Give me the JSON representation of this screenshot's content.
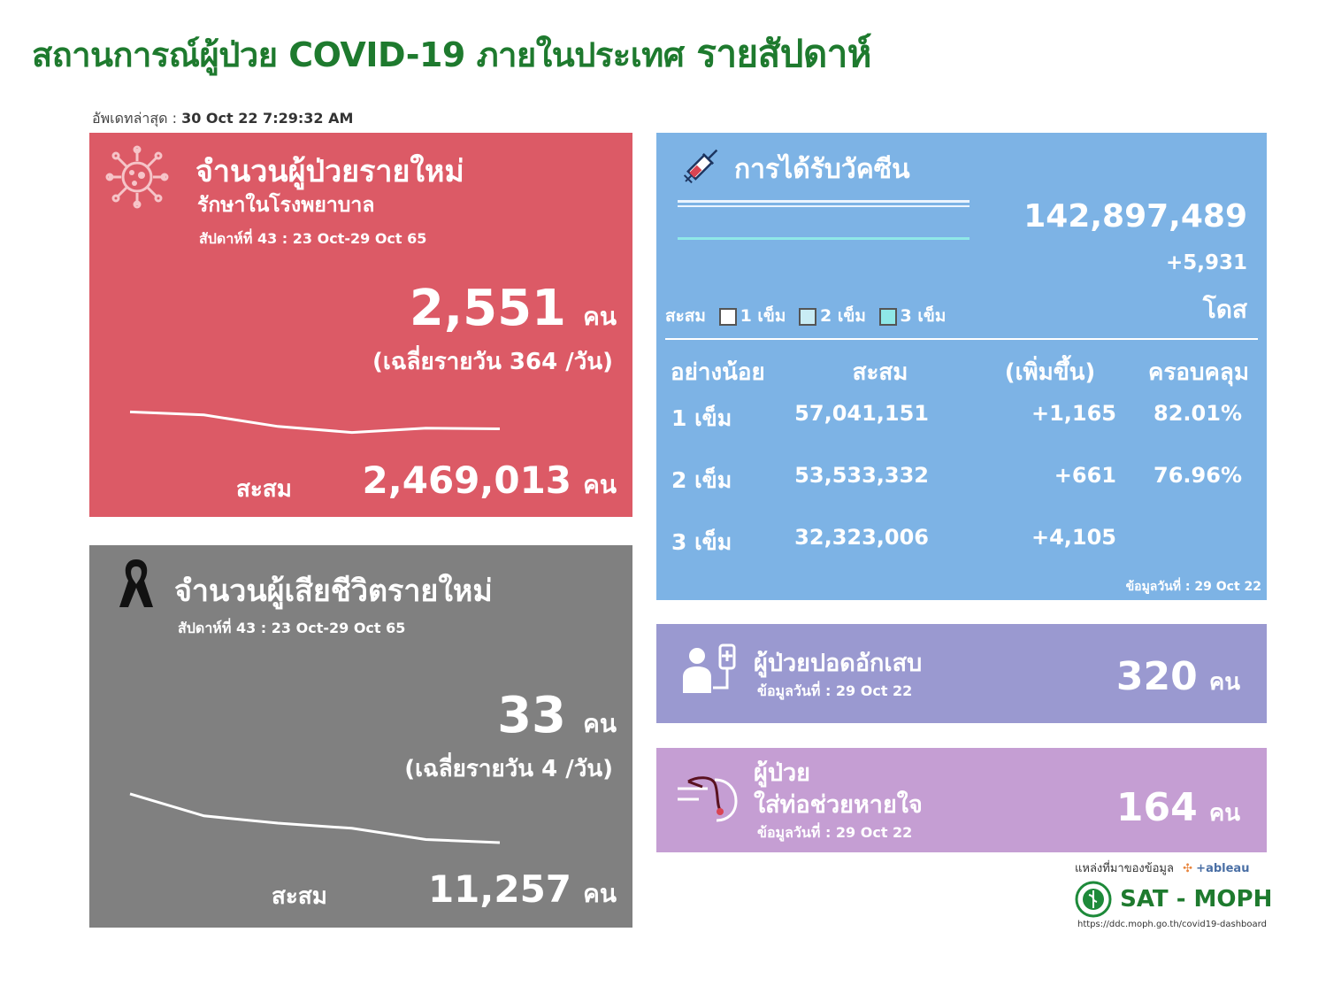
{
  "header": {
    "title": "สถานการณ์ผู้ป่วย COVID-19 ภายในประเทศ",
    "title_suffix": "รายสัปดาห์",
    "updated_label": "อัพเดทล่าสุด :",
    "updated_value": "30 Oct 22 7:29:32 AM"
  },
  "cases": {
    "title": "จำนวนผู้ป่วยรายใหม่",
    "subtitle": "รักษาในโรงพยาบาล",
    "week": "สัปดาห์ที่ 43 : 23 Oct-29 Oct 65",
    "value": "2,551",
    "unit": "คน",
    "daily_avg": "(เฉลี่ยรายวัน 364 /วัน)",
    "cumulative_label": "สะสม",
    "cumulative_value": "2,469,013",
    "cumulative_unit": "คน",
    "trend": [
      0.58,
      0.63,
      0.82,
      0.92,
      0.85,
      0.86
    ],
    "color": "#dc5a66"
  },
  "deaths": {
    "title": "จำนวนผู้เสียชีวิตรายใหม่",
    "week": "สัปดาห์ที่  43 : 23 Oct-29 Oct 65",
    "value": "33",
    "unit": "คน",
    "daily_avg": "(เฉลี่ยรายวัน 4 /วัน)",
    "cumulative_label": "สะสม",
    "cumulative_value": "11,257",
    "cumulative_unit": "คน",
    "trend": [
      0.05,
      0.48,
      0.62,
      0.72,
      0.94,
      1.0
    ],
    "color": "#808080"
  },
  "vaccine": {
    "title": "การได้รับวัคซีน",
    "total": "142,897,489",
    "increase": "+5,931",
    "unit": "โดส",
    "legend_label": "สะสม",
    "legend": [
      "1 เข็ม",
      "2 เข็ม",
      "3 เข็ม"
    ],
    "columns": [
      "อย่างน้อย",
      "สะสม",
      "(เพิ่มขึ้น)",
      "ครอบคลุม"
    ],
    "rows": [
      {
        "dose": "1 เข็ม",
        "cumulative": "57,041,151",
        "increase": "+1,165",
        "coverage": "82.01%"
      },
      {
        "dose": "2 เข็ม",
        "cumulative": "53,533,332",
        "increase": "+661",
        "coverage": "76.96%"
      },
      {
        "dose": "3 เข็ม",
        "cumulative": "32,323,006",
        "increase": "+4,105",
        "coverage": ""
      }
    ],
    "data_date": "ข้อมูลวันที่ : 29 Oct 22",
    "color": "#7db3e5"
  },
  "pneumonia": {
    "title": "ผู้ป่วยปอดอักเสบ",
    "data_date": "ข้อมูลวันที่ : 29 Oct 22",
    "value": "320",
    "unit": "คน",
    "color": "#9a99d0"
  },
  "ventilator": {
    "title_line1": "ผู้ป่วย",
    "title_line2": "ใส่ท่อช่วยหายใจ",
    "data_date": "ข้อมูลวันที่ : 29 Oct 22",
    "value": "164",
    "unit": "คน",
    "color": "#c59ed3"
  },
  "footer": {
    "source_label": "แหล่งที่มาของข้อมูล",
    "tableau": "+ableau",
    "org": "SAT - MOPH",
    "url": "https://ddc.moph.go.th/covid19-dashboard"
  }
}
